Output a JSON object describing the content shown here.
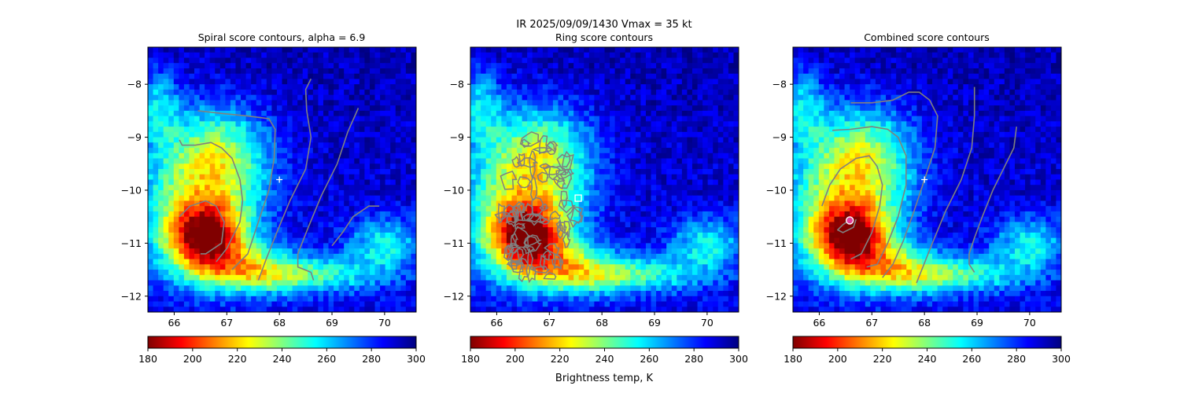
{
  "suptitle_line1": "IR  2025/09/09/1430    Vmax = 35 kt",
  "colorbar_label": "Brightness temp, K",
  "colormap": [
    "#800000",
    "#ff0000",
    "#ff8000",
    "#ffff00",
    "#80ff80",
    "#00ffff",
    "#0080ff",
    "#0000ff",
    "#000080"
  ],
  "chart_data": [
    {
      "type": "heatmap",
      "title": "Spiral score contours, alpha =  6.9",
      "xlim": [
        65.5,
        70.6
      ],
      "ylim": [
        -12.3,
        -7.3
      ],
      "xticks": [
        66,
        67,
        68,
        69,
        70
      ],
      "yticks": [
        -8,
        -9,
        -10,
        -11,
        -12
      ],
      "color_range": [
        180,
        300
      ],
      "colorbar_ticks": [
        180,
        200,
        220,
        240,
        260,
        280,
        300
      ],
      "marker": {
        "symbol": "plus",
        "lon": 68.0,
        "lat": -9.8
      },
      "contours": [
        [
          [
            66.1,
            -10.5
          ],
          [
            66.3,
            -10.3
          ],
          [
            66.6,
            -10.2
          ],
          [
            66.8,
            -10.3
          ],
          [
            66.95,
            -10.6
          ],
          [
            66.9,
            -11.0
          ],
          [
            66.6,
            -11.2
          ],
          [
            66.5,
            -11.2
          ]
        ],
        [
          [
            66.1,
            -9.05
          ],
          [
            66.15,
            -9.15
          ],
          [
            66.4,
            -9.15
          ],
          [
            66.7,
            -9.1
          ],
          [
            66.9,
            -9.2
          ],
          [
            67.1,
            -9.4
          ],
          [
            67.25,
            -9.8
          ],
          [
            67.3,
            -10.2
          ],
          [
            67.25,
            -10.6
          ],
          [
            67.0,
            -11.1
          ],
          [
            66.8,
            -11.35
          ]
        ],
        [
          [
            66.45,
            -8.5
          ],
          [
            66.9,
            -8.55
          ],
          [
            67.4,
            -8.6
          ],
          [
            67.8,
            -8.65
          ],
          [
            67.92,
            -8.85
          ],
          [
            67.9,
            -9.4
          ],
          [
            67.8,
            -10.0
          ],
          [
            67.6,
            -10.6
          ],
          [
            67.4,
            -11.2
          ],
          [
            67.1,
            -11.5
          ]
        ],
        [
          [
            68.6,
            -7.9
          ],
          [
            68.5,
            -8.1
          ],
          [
            68.52,
            -8.5
          ],
          [
            68.6,
            -9.0
          ],
          [
            68.5,
            -9.6
          ],
          [
            68.2,
            -10.2
          ],
          [
            67.95,
            -10.8
          ],
          [
            67.75,
            -11.3
          ],
          [
            67.6,
            -11.7
          ]
        ],
        [
          [
            69.5,
            -8.45
          ],
          [
            69.3,
            -8.9
          ],
          [
            69.1,
            -9.5
          ],
          [
            68.8,
            -10.1
          ],
          [
            68.55,
            -10.7
          ],
          [
            68.35,
            -11.2
          ],
          [
            68.35,
            -11.45
          ],
          [
            68.6,
            -11.55
          ],
          [
            68.65,
            -11.7
          ]
        ],
        [
          [
            69.9,
            -10.3
          ],
          [
            69.7,
            -10.3
          ],
          [
            69.4,
            -10.5
          ],
          [
            69.2,
            -10.8
          ],
          [
            69.0,
            -11.05
          ]
        ]
      ]
    },
    {
      "type": "heatmap",
      "title": "Ring score contours",
      "xlim": [
        65.5,
        70.6
      ],
      "ylim": [
        -12.3,
        -7.3
      ],
      "xticks": [
        66,
        67,
        68,
        69,
        70
      ],
      "yticks": [
        -8,
        -9,
        -10,
        -11,
        -12
      ],
      "color_range": [
        180,
        300
      ],
      "colorbar_ticks": [
        180,
        200,
        220,
        240,
        260,
        280,
        300
      ],
      "marker": {
        "symbol": "square",
        "lon": 67.55,
        "lat": -10.15
      },
      "contour_region": {
        "center_lon": 66.8,
        "center_lat": -10.4,
        "radius_lon": 0.8,
        "radius_lat": 1.5
      }
    },
    {
      "type": "heatmap",
      "title": "Combined score contours",
      "xlim": [
        65.5,
        70.6
      ],
      "ylim": [
        -12.3,
        -7.3
      ],
      "xticks": [
        66,
        67,
        68,
        69,
        70
      ],
      "yticks": [
        -8,
        -9,
        -10,
        -11,
        -12
      ],
      "color_range": [
        180,
        300
      ],
      "colorbar_ticks": [
        180,
        200,
        220,
        240,
        260,
        280,
        300
      ],
      "marker": {
        "symbol": "plus",
        "lon": 68.0,
        "lat": -9.8
      },
      "center_marker": {
        "lon": 66.58,
        "lat": -10.57
      },
      "contours": [
        [
          [
            66.6,
            -10.55
          ],
          [
            66.45,
            -10.65
          ],
          [
            66.35,
            -10.75
          ],
          [
            66.45,
            -10.8
          ],
          [
            66.65,
            -10.7
          ],
          [
            66.7,
            -10.55
          ]
        ],
        [
          [
            66.05,
            -10.3
          ],
          [
            66.2,
            -9.9
          ],
          [
            66.4,
            -9.6
          ],
          [
            66.7,
            -9.4
          ],
          [
            66.95,
            -9.35
          ],
          [
            67.1,
            -9.55
          ],
          [
            67.2,
            -9.9
          ],
          [
            67.15,
            -10.3
          ],
          [
            67.0,
            -10.8
          ],
          [
            66.8,
            -11.2
          ],
          [
            66.6,
            -11.3
          ]
        ],
        [
          [
            66.25,
            -8.87
          ],
          [
            66.6,
            -8.85
          ],
          [
            67.0,
            -8.8
          ],
          [
            67.3,
            -8.85
          ],
          [
            67.5,
            -9.0
          ],
          [
            67.65,
            -9.35
          ],
          [
            67.65,
            -9.9
          ],
          [
            67.5,
            -10.5
          ],
          [
            67.3,
            -11.0
          ],
          [
            67.1,
            -11.4
          ],
          [
            66.9,
            -11.45
          ]
        ],
        [
          [
            66.6,
            -8.35
          ],
          [
            67.0,
            -8.35
          ],
          [
            67.4,
            -8.3
          ],
          [
            67.7,
            -8.15
          ],
          [
            67.9,
            -8.15
          ],
          [
            68.1,
            -8.3
          ],
          [
            68.25,
            -8.6
          ],
          [
            68.2,
            -9.2
          ],
          [
            68.0,
            -9.8
          ],
          [
            67.8,
            -10.4
          ],
          [
            67.6,
            -10.95
          ],
          [
            67.4,
            -11.4
          ],
          [
            67.2,
            -11.65
          ]
        ],
        [
          [
            68.95,
            -8.05
          ],
          [
            68.95,
            -8.6
          ],
          [
            68.9,
            -9.2
          ],
          [
            68.7,
            -9.8
          ],
          [
            68.4,
            -10.4
          ],
          [
            68.15,
            -11.0
          ],
          [
            67.95,
            -11.5
          ],
          [
            67.85,
            -11.75
          ]
        ],
        [
          [
            69.75,
            -8.8
          ],
          [
            69.7,
            -9.2
          ],
          [
            69.5,
            -9.6
          ],
          [
            69.3,
            -10.0
          ],
          [
            69.1,
            -10.5
          ],
          [
            68.95,
            -10.9
          ],
          [
            68.85,
            -11.2
          ],
          [
            68.85,
            -11.4
          ],
          [
            68.95,
            -11.55
          ]
        ]
      ]
    }
  ]
}
